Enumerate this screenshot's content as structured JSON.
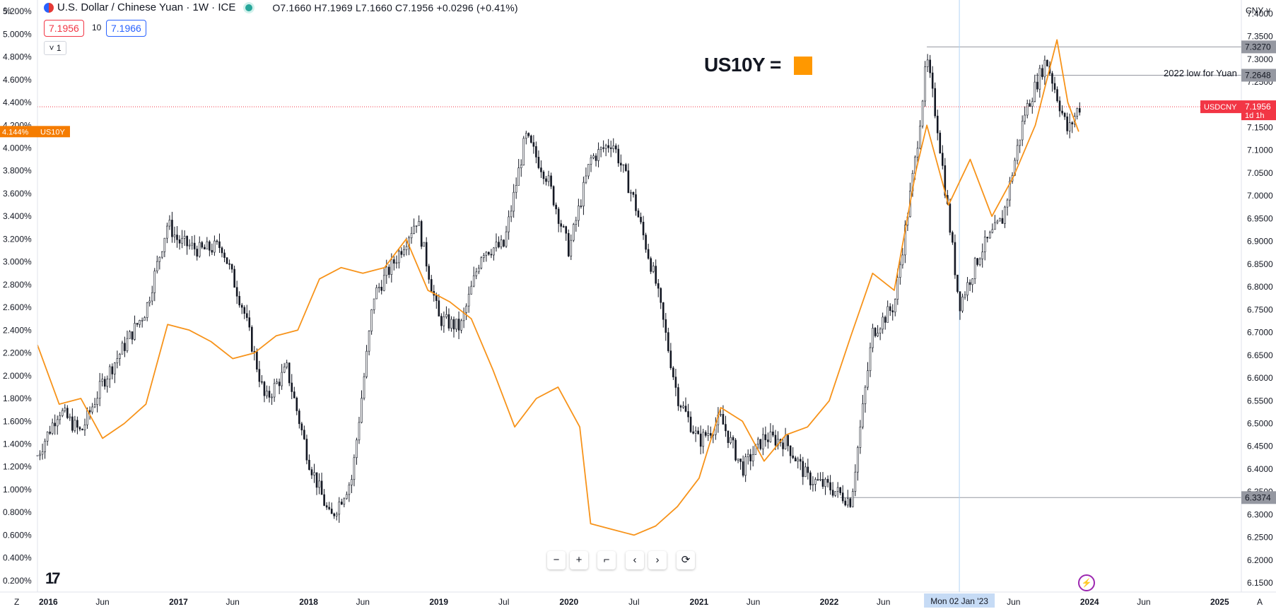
{
  "header": {
    "title": "U.S. Dollar / Chinese Yuan · 1W · ICE",
    "ohlc": "O7.1660 H7.1969 L7.1660 C7.1956 +0.0296 (+0.41%)",
    "bid": "7.1956",
    "spread": "10",
    "ask": "7.1966",
    "collapse_label": "˅ 1"
  },
  "corners": {
    "left_axis_unit": "%",
    "right_currency": "CNY ˅",
    "bottom_left": "Z",
    "bottom_right": "A"
  },
  "annotation": {
    "title": "US10Y =",
    "swatch_color": "#ff9800",
    "label_2022_low": "2022 low for Yuan"
  },
  "toolbar": [
    "−",
    "+",
    "⌐",
    "‹",
    "›",
    "⟳"
  ],
  "colors": {
    "usdcny": "#131722",
    "us10y": "#f7931a",
    "badge_red": "#f23645",
    "badge_orange": "#f57c00",
    "badge_gray": "#9598a1"
  },
  "chart_data": {
    "type": "line",
    "series": [
      {
        "name": "USDCNY",
        "axis": "right",
        "style": "candles",
        "x": [
          "2015-12",
          "2016-02",
          "2016-04",
          "2016-06",
          "2016-08",
          "2016-10",
          "2016-12",
          "2017-01",
          "2017-03",
          "2017-05",
          "2017-07",
          "2017-09",
          "2017-11",
          "2018-01",
          "2018-03",
          "2018-05",
          "2018-07",
          "2018-09",
          "2018-11",
          "2019-01",
          "2019-03",
          "2019-05",
          "2019-07",
          "2019-09",
          "2019-11",
          "2020-01",
          "2020-03",
          "2020-05",
          "2020-07",
          "2020-09",
          "2020-11",
          "2021-01",
          "2021-03",
          "2021-05",
          "2021-07",
          "2021-09",
          "2021-11",
          "2022-01",
          "2022-03",
          "2022-05",
          "2022-07",
          "2022-09",
          "2022-10",
          "2022-11",
          "2023-01",
          "2023-03",
          "2023-05",
          "2023-07",
          "2023-09",
          "2023-11",
          "2023-12"
        ],
        "values": [
          6.43,
          6.53,
          6.48,
          6.59,
          6.67,
          6.75,
          6.94,
          6.9,
          6.88,
          6.89,
          6.75,
          6.55,
          6.62,
          6.42,
          6.29,
          6.38,
          6.78,
          6.86,
          6.95,
          6.73,
          6.71,
          6.88,
          6.89,
          7.13,
          7.04,
          6.88,
          7.08,
          7.12,
          6.99,
          6.81,
          6.56,
          6.46,
          6.51,
          6.4,
          6.47,
          6.46,
          6.38,
          6.36,
          6.33,
          6.7,
          6.76,
          7.09,
          7.3,
          7.15,
          6.76,
          6.88,
          6.95,
          7.18,
          7.3,
          7.14,
          7.1956
        ],
        "last_label": "7.1956",
        "last_countdown": "1d 1h"
      },
      {
        "name": "US10Y",
        "axis": "left",
        "style": "line",
        "x": [
          "2015-12",
          "2016-02",
          "2016-04",
          "2016-06",
          "2016-08",
          "2016-10",
          "2016-12",
          "2017-02",
          "2017-04",
          "2017-06",
          "2017-08",
          "2017-10",
          "2017-12",
          "2018-02",
          "2018-04",
          "2018-06",
          "2018-08",
          "2018-10",
          "2018-12",
          "2019-02",
          "2019-04",
          "2019-06",
          "2019-08",
          "2019-10",
          "2019-12",
          "2020-02",
          "2020-03",
          "2020-05",
          "2020-07",
          "2020-09",
          "2020-11",
          "2021-01",
          "2021-03",
          "2021-05",
          "2021-07",
          "2021-09",
          "2021-11",
          "2022-01",
          "2022-03",
          "2022-05",
          "2022-07",
          "2022-09",
          "2022-10",
          "2022-12",
          "2023-02",
          "2023-04",
          "2023-06",
          "2023-08",
          "2023-10",
          "2023-11",
          "2023-12"
        ],
        "values": [
          2.27,
          1.75,
          1.8,
          1.45,
          1.58,
          1.75,
          2.45,
          2.4,
          2.3,
          2.15,
          2.2,
          2.35,
          2.4,
          2.85,
          2.95,
          2.9,
          2.95,
          3.2,
          2.75,
          2.65,
          2.5,
          2.05,
          1.55,
          1.8,
          1.9,
          1.55,
          0.7,
          0.65,
          0.6,
          0.68,
          0.85,
          1.1,
          1.72,
          1.6,
          1.25,
          1.48,
          1.55,
          1.78,
          2.35,
          2.9,
          2.75,
          3.8,
          4.2,
          3.5,
          3.9,
          3.4,
          3.75,
          4.2,
          4.95,
          4.4,
          4.144
        ],
        "last_label": "4.144%"
      }
    ],
    "y_left": {
      "range": [
        0.1,
        5.3
      ],
      "ticks": [
        "5.200%",
        "5.000%",
        "4.800%",
        "4.600%",
        "4.400%",
        "4.200%",
        "4.000%",
        "3.800%",
        "3.600%",
        "3.400%",
        "3.200%",
        "3.000%",
        "2.800%",
        "2.600%",
        "2.400%",
        "2.200%",
        "2.000%",
        "1.800%",
        "1.600%",
        "1.400%",
        "1.200%",
        "1.000%",
        "0.800%",
        "0.600%",
        "0.400%",
        "0.200%"
      ]
    },
    "y_right": {
      "range": [
        6.13,
        7.43
      ],
      "ticks": [
        "7.4000",
        "7.3500",
        "7.3000",
        "7.2500",
        "7.2000",
        "7.1500",
        "7.1000",
        "7.0500",
        "7.0000",
        "6.9500",
        "6.9000",
        "6.8500",
        "6.8000",
        "6.7500",
        "6.7000",
        "6.6500",
        "6.6000",
        "6.5500",
        "6.5000",
        "6.4500",
        "6.4000",
        "6.3500",
        "6.3000",
        "6.2500",
        "6.2000",
        "6.1500"
      ]
    },
    "x_axis": {
      "range": [
        "2015-12",
        "2025-03"
      ],
      "ticks": [
        {
          "label": "2016",
          "x": "2016-01",
          "bold": true
        },
        {
          "label": "Jun",
          "x": "2016-06",
          "bold": false
        },
        {
          "label": "2017",
          "x": "2017-01",
          "bold": true
        },
        {
          "label": "Jun",
          "x": "2017-06",
          "bold": false
        },
        {
          "label": "2018",
          "x": "2018-01",
          "bold": true
        },
        {
          "label": "Jun",
          "x": "2018-06",
          "bold": false
        },
        {
          "label": "2019",
          "x": "2019-01",
          "bold": true
        },
        {
          "label": "Jul",
          "x": "2019-07",
          "bold": false
        },
        {
          "label": "2020",
          "x": "2020-01",
          "bold": true
        },
        {
          "label": "Jul",
          "x": "2020-07",
          "bold": false
        },
        {
          "label": "2021",
          "x": "2021-01",
          "bold": true
        },
        {
          "label": "Jun",
          "x": "2021-06",
          "bold": false
        },
        {
          "label": "2022",
          "x": "2022-01",
          "bold": true
        },
        {
          "label": "Jun",
          "x": "2022-06",
          "bold": false
        },
        {
          "label": "Jun",
          "x": "2023-06",
          "bold": false
        },
        {
          "label": "2024",
          "x": "2024-01",
          "bold": true
        },
        {
          "label": "Jun",
          "x": "2024-06",
          "bold": false
        },
        {
          "label": "2025",
          "x": "2025-01",
          "bold": true
        }
      ],
      "crosshair_label": "Mon 02 Jan '23",
      "crosshair_x": "2023-01"
    },
    "levels": [
      {
        "value": 7.327,
        "label": "7.3270",
        "from": "2022-10"
      },
      {
        "value": 7.2648,
        "label": "7.2648",
        "from": "2023-08"
      },
      {
        "value": 6.3374,
        "label": "6.3374",
        "from": "2022-02"
      }
    ],
    "current_price_line": {
      "value": 7.1956,
      "name": "USDCNY"
    },
    "grid": false
  }
}
